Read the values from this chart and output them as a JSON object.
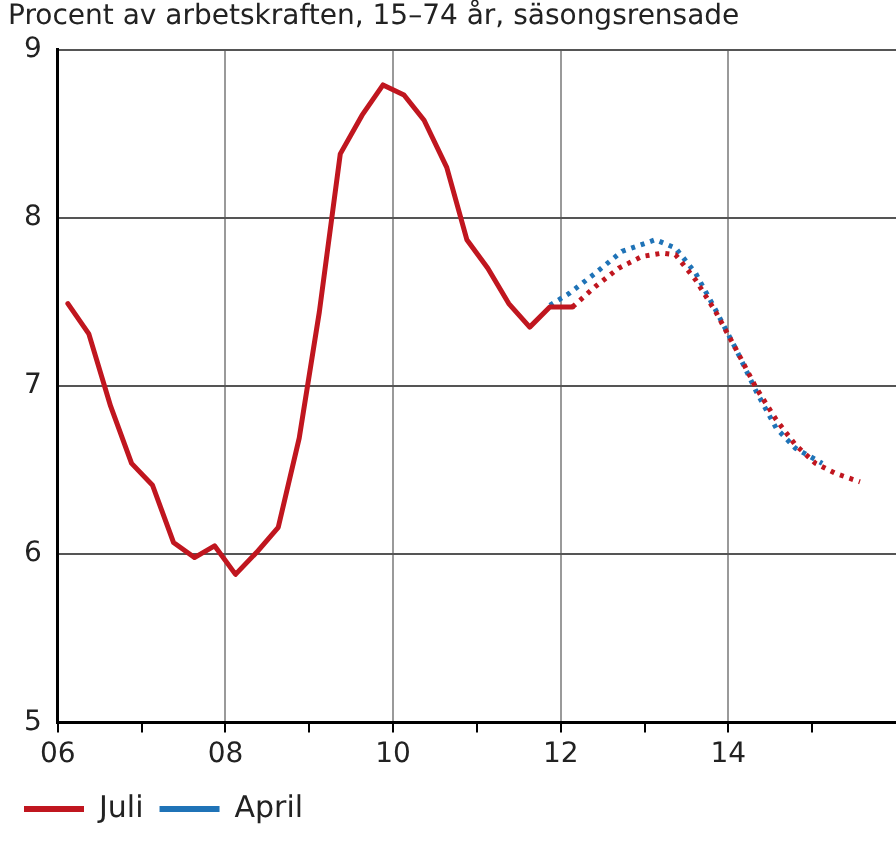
{
  "chart_data": {
    "type": "line",
    "title": "Procent av arbetskraften, 15–74 år, säsongsrensade",
    "xlim": [
      2006,
      2016
    ],
    "xticks": [
      {
        "value": 2006,
        "label": "06"
      },
      {
        "value": 2007,
        "label": null
      },
      {
        "value": 2008,
        "label": "08"
      },
      {
        "value": 2009,
        "label": null
      },
      {
        "value": 2010,
        "label": "10"
      },
      {
        "value": 2011,
        "label": null
      },
      {
        "value": 2012,
        "label": "12"
      },
      {
        "value": 2013,
        "label": null
      },
      {
        "value": 2014,
        "label": "14"
      },
      {
        "value": 2015,
        "label": null
      }
    ],
    "ylim": [
      5,
      9
    ],
    "yticks": [
      5,
      6,
      7,
      8,
      9
    ],
    "grid": true,
    "legend": "bottom left",
    "marker": "none",
    "series": [
      {
        "name": "Juli",
        "color": "#c0161f",
        "line_style": "solid",
        "x": [
          2006.12,
          2006.37,
          2006.63,
          2006.88,
          2007.13,
          2007.38,
          2007.63,
          2007.87,
          2008.12,
          2008.37,
          2008.63,
          2008.88,
          2009.12,
          2009.37,
          2009.63,
          2009.88,
          2010.13,
          2010.37,
          2010.64,
          2010.88,
          2011.13,
          2011.38,
          2011.63,
          2011.87,
          2012.14
        ],
        "values": [
          7.49,
          7.31,
          6.88,
          6.54,
          6.41,
          6.07,
          5.98,
          6.05,
          5.88,
          6.01,
          6.16,
          6.69,
          7.44,
          8.38,
          8.61,
          8.79,
          8.73,
          8.58,
          8.3,
          7.87,
          7.7,
          7.49,
          7.35,
          7.47,
          7.47
        ]
      },
      {
        "color": "#c0161f",
        "line_style": "dotted",
        "x": [
          2012.14,
          2012.41,
          2012.69,
          2012.97,
          2013.21,
          2013.37,
          2013.61,
          2013.85,
          2014.09,
          2014.33,
          2014.57,
          2014.8,
          2015.04,
          2015.28,
          2015.57
        ],
        "values": [
          7.47,
          7.59,
          7.7,
          7.77,
          7.79,
          7.78,
          7.63,
          7.44,
          7.22,
          6.99,
          6.8,
          6.65,
          6.54,
          6.48,
          6.43
        ]
      },
      {
        "name": "April",
        "color": "#1f73b7",
        "line_style": "dotted",
        "x": [
          2011.87,
          2012.1,
          2012.41,
          2012.73,
          2013.13,
          2013.37,
          2013.61,
          2013.85,
          2014.09,
          2014.33,
          2014.57,
          2014.8,
          2015.12
        ],
        "values": [
          7.48,
          7.55,
          7.67,
          7.8,
          7.87,
          7.82,
          7.67,
          7.45,
          7.22,
          6.97,
          6.75,
          6.63,
          6.54
        ]
      }
    ]
  }
}
